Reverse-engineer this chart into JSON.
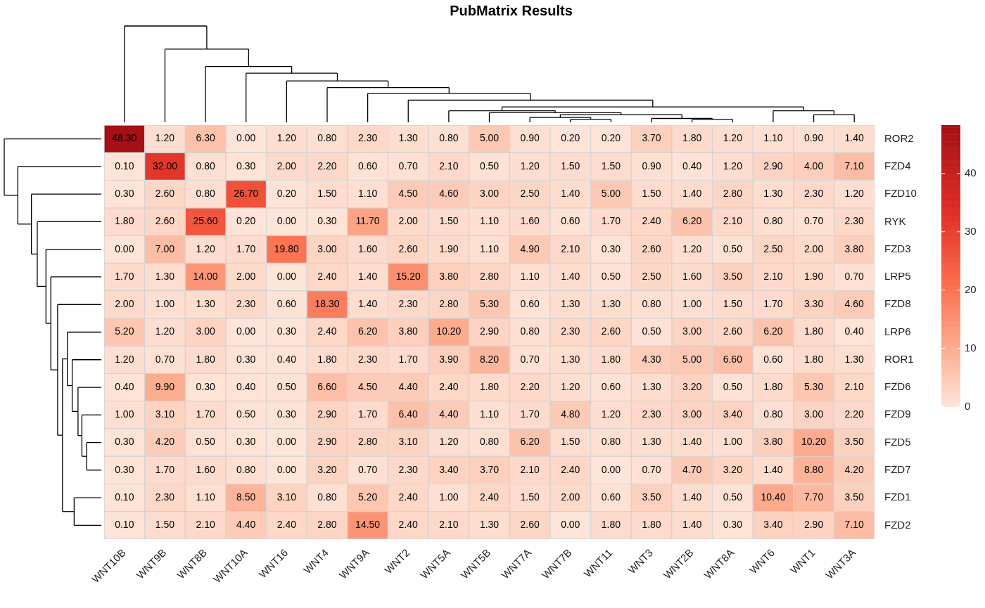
{
  "chart_data": {
    "type": "heatmap",
    "title": "PubMatrix Results",
    "categories": [
      "WNT10B",
      "WNT9B",
      "WNT8B",
      "WNT10A",
      "WNT16",
      "WNT4",
      "WNT9A",
      "WNT2",
      "WNT5A",
      "WNT5B",
      "WNT7A",
      "WNT7B",
      "WNT11",
      "WNT3",
      "WNT2B",
      "WNT8A",
      "WNT6",
      "WNT1",
      "WNT3A"
    ],
    "y_categories": [
      "ROR2",
      "FZD4",
      "FZD10",
      "RYK",
      "FZD3",
      "LRP5",
      "FZD8",
      "LRP6",
      "ROR1",
      "FZD6",
      "FZD9",
      "FZD5",
      "FZD7",
      "FZD1",
      "FZD2"
    ],
    "cells": [
      [
        48.3,
        1.2,
        6.3,
        0,
        1.2,
        0.8,
        2.3,
        1.3,
        0.8,
        5,
        0.9,
        0.2,
        0.2,
        3.7,
        1.8,
        1.2,
        1.1,
        0.9,
        1.4
      ],
      [
        0.1,
        32,
        0.8,
        0.3,
        2,
        2.2,
        0.6,
        0.7,
        2.1,
        0.5,
        1.2,
        1.5,
        1.5,
        0.9,
        0.4,
        1.2,
        2.9,
        4,
        7.1
      ],
      [
        0.3,
        2.6,
        0.8,
        26.7,
        0.2,
        1.5,
        1.1,
        4.5,
        4.6,
        3,
        2.5,
        1.4,
        5,
        1.5,
        1.4,
        2.8,
        1.3,
        2.3,
        1.2
      ],
      [
        1.8,
        2.6,
        25.6,
        0.2,
        0,
        0.3,
        11.7,
        2,
        1.5,
        1.1,
        1.6,
        0.6,
        1.7,
        2.4,
        6.2,
        2.1,
        0.8,
        0.7,
        2.3
      ],
      [
        0,
        7,
        1.2,
        1.7,
        19.8,
        3,
        1.6,
        2.6,
        1.9,
        1.1,
        4.9,
        2.1,
        0.3,
        2.6,
        1.2,
        0.5,
        2.5,
        2,
        3.8
      ],
      [
        1.7,
        1.3,
        14,
        2,
        0,
        2.4,
        1.4,
        15.2,
        3.8,
        2.8,
        1.1,
        1.4,
        0.5,
        2.5,
        1.6,
        3.5,
        2.1,
        1.9,
        0.7
      ],
      [
        2,
        1,
        1.3,
        2.3,
        0.6,
        18.3,
        1.4,
        2.3,
        2.8,
        5.3,
        0.6,
        1.3,
        1.3,
        0.8,
        1,
        1.5,
        1.7,
        3.3,
        4.6
      ],
      [
        5.2,
        1.2,
        3,
        0,
        0.3,
        2.4,
        6.2,
        3.8,
        10.2,
        2.9,
        0.8,
        2.3,
        2.6,
        0.5,
        3,
        2.6,
        6.2,
        1.8,
        0.4
      ],
      [
        1.2,
        0.7,
        1.8,
        0.3,
        0.4,
        1.8,
        2.3,
        1.7,
        3.9,
        8.2,
        0.7,
        1.3,
        1.8,
        4.3,
        5,
        6.6,
        0.6,
        1.8,
        1.3
      ],
      [
        0.4,
        9.9,
        0.3,
        0.4,
        0.5,
        6.6,
        4.5,
        4.4,
        2.4,
        1.8,
        2.2,
        1.2,
        0.6,
        1.3,
        3.2,
        0.5,
        1.8,
        5.3,
        2.1
      ],
      [
        1,
        3.1,
        1.7,
        0.5,
        0.3,
        2.9,
        1.7,
        6.4,
        4.4,
        1.1,
        1.7,
        4.8,
        1.2,
        2.3,
        3,
        3.4,
        0.8,
        3,
        2.2
      ],
      [
        0.3,
        4.2,
        0.5,
        0.3,
        0,
        2.9,
        2.8,
        3.1,
        1.2,
        0.8,
        6.2,
        1.5,
        0.8,
        1.3,
        1.4,
        1,
        3.8,
        10.2,
        3.5
      ],
      [
        0.3,
        1.7,
        1.6,
        0.8,
        0,
        3.2,
        0.7,
        2.3,
        3.4,
        3.7,
        2.1,
        2.4,
        0,
        0.7,
        4.7,
        3.2,
        1.4,
        8.8,
        4.2
      ],
      [
        0.1,
        2.3,
        1.1,
        8.5,
        3.1,
        0.8,
        5.2,
        2.4,
        1,
        2.4,
        1.5,
        2,
        0.6,
        3.5,
        1.4,
        0.5,
        10.4,
        7.7,
        3.5
      ],
      [
        0.1,
        1.5,
        2.1,
        4.4,
        2.4,
        2.8,
        14.5,
        2.4,
        2.1,
        1.3,
        2.6,
        0,
        1.8,
        1.8,
        1.4,
        0.3,
        3.4,
        2.9,
        7.1
      ]
    ],
    "cell_labels": [
      [
        "48.30",
        "1.20",
        "6.30",
        "0.00",
        "1.20",
        "0.80",
        "2.30",
        "1.30",
        "0.80",
        "5.00",
        "0.90",
        "0.20",
        "0.20",
        "3.70",
        "1.80",
        "1.20",
        "1.10",
        "0.90",
        "1.40"
      ],
      [
        "0.10",
        "32.00",
        "0.80",
        "0.30",
        "2.00",
        "2.20",
        "0.60",
        "0.70",
        "2.10",
        "0.50",
        "1.20",
        "1.50",
        "1.50",
        "0.90",
        "0.40",
        "1.20",
        "2.90",
        "4.00",
        "7.10"
      ],
      [
        "0.30",
        "2.60",
        "0.80",
        "26.70",
        "0.20",
        "1.50",
        "1.10",
        "4.50",
        "4.60",
        "3.00",
        "2.50",
        "1.40",
        "5.00",
        "1.50",
        "1.40",
        "2.80",
        "1.30",
        "2.30",
        "1.20"
      ],
      [
        "1.80",
        "2.60",
        "25.60",
        "0.20",
        "0.00",
        "0.30",
        "11.70",
        "2.00",
        "1.50",
        "1.10",
        "1.60",
        "0.60",
        "1.70",
        "2.40",
        "6.20",
        "2.10",
        "0.80",
        "0.70",
        "2.30"
      ],
      [
        "0.00",
        "7.00",
        "1.20",
        "1.70",
        "19.80",
        "3.00",
        "1.60",
        "2.60",
        "1.90",
        "1.10",
        "4.90",
        "2.10",
        "0.30",
        "2.60",
        "1.20",
        "0.50",
        "2.50",
        "2.00",
        "3.80"
      ],
      [
        "1.70",
        "1.30",
        "14.00",
        "2.00",
        "0.00",
        "2.40",
        "1.40",
        "15.20",
        "3.80",
        "2.80",
        "1.10",
        "1.40",
        "0.50",
        "2.50",
        "1.60",
        "3.50",
        "2.10",
        "1.90",
        "0.70"
      ],
      [
        "2.00",
        "1.00",
        "1.30",
        "2.30",
        "0.60",
        "18.30",
        "1.40",
        "2.30",
        "2.80",
        "5.30",
        "0.60",
        "1.30",
        "1.30",
        "0.80",
        "1.00",
        "1.50",
        "1.70",
        "3.30",
        "4.60"
      ],
      [
        "5.20",
        "1.20",
        "3.00",
        "0.00",
        "0.30",
        "2.40",
        "6.20",
        "3.80",
        "10.20",
        "2.90",
        "0.80",
        "2.30",
        "2.60",
        "0.50",
        "3.00",
        "2.60",
        "6.20",
        "1.80",
        "0.40"
      ],
      [
        "1.20",
        "0.70",
        "1.80",
        "0.30",
        "0.40",
        "1.80",
        "2.30",
        "1.70",
        "3.90",
        "8.20",
        "0.70",
        "1.30",
        "1.80",
        "4.30",
        "5.00",
        "6.60",
        "0.60",
        "1.80",
        "1.30"
      ],
      [
        "0.40",
        "9.90",
        "0.30",
        "0.40",
        "0.50",
        "6.60",
        "4.50",
        "4.40",
        "2.40",
        "1.80",
        "2.20",
        "1.20",
        "0.60",
        "1.30",
        "3.20",
        "0.50",
        "1.80",
        "5.30",
        "2.10"
      ],
      [
        "1.00",
        "3.10",
        "1.70",
        "0.50",
        "0.30",
        "2.90",
        "1.70",
        "6.40",
        "4.40",
        "1.10",
        "1.70",
        "4.80",
        "1.20",
        "2.30",
        "3.00",
        "3.40",
        "0.80",
        "3.00",
        "2.20"
      ],
      [
        "0.30",
        "4.20",
        "0.50",
        "0.30",
        "0.00",
        "2.90",
        "2.80",
        "3.10",
        "1.20",
        "0.80",
        "6.20",
        "1.50",
        "0.80",
        "1.30",
        "1.40",
        "1.00",
        "3.80",
        "10.20",
        "3.50"
      ],
      [
        "0.30",
        "1.70",
        "1.60",
        "0.80",
        "0.00",
        "3.20",
        "0.70",
        "2.30",
        "3.40",
        "3.70",
        "2.10",
        "2.40",
        "0.00",
        "0.70",
        "4.70",
        "3.20",
        "1.40",
        "8.80",
        "4.20"
      ],
      [
        "0.10",
        "2.30",
        "1.10",
        "8.50",
        "3.10",
        "0.80",
        "5.20",
        "2.40",
        "1.00",
        "2.40",
        "1.50",
        "2.00",
        "0.60",
        "3.50",
        "1.40",
        "0.50",
        "10.40",
        "7.70",
        "3.50"
      ],
      [
        "0.10",
        "1.50",
        "2.10",
        "4.40",
        "2.40",
        "2.80",
        "14.50",
        "2.40",
        "2.10",
        "1.30",
        "2.60",
        "0.00",
        "1.80",
        "1.80",
        "1.40",
        "0.30",
        "3.40",
        "2.90",
        "7.10"
      ]
    ],
    "clim": [
      0,
      48.3
    ],
    "cticks": [
      0,
      10,
      20,
      30,
      40
    ]
  }
}
